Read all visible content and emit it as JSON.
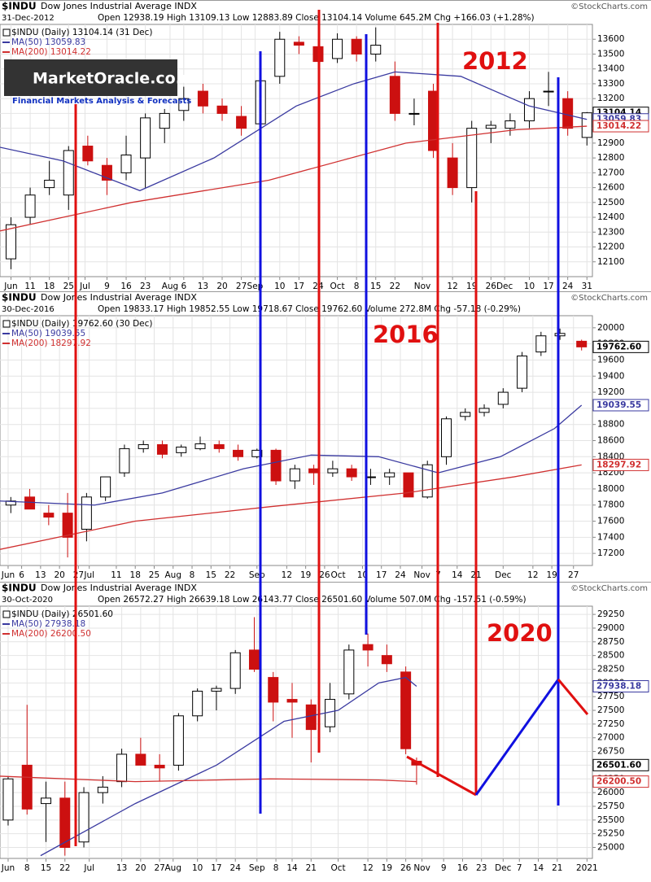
{
  "watermark": {
    "title": "MarketOracle.co.uk",
    "subtitle": "Financial Markets Analysis & Forecasts"
  },
  "chart_data": [
    {
      "type": "candlestick",
      "symbol": "$INDU",
      "title": "Dow Jones Industrial Average INDX",
      "source": "©StockCharts.com",
      "date": "31-Dec-2012",
      "ohlc": "Open 12938.19 High 13109.13 Low 12883.89 Close 13104.14 Volume 645.2M Chg +166.03 (+1.28%)",
      "price_legend": "$INDU (Daily) 13104.14 (31 Dec)",
      "annotation": "2012",
      "grid": true,
      "xlim": [
        152,
        368
      ],
      "ylim": [
        12000,
        13700
      ],
      "xticks": [
        {
          "value": 156,
          "label": "Jun"
        },
        {
          "value": 163,
          "label": "11"
        },
        {
          "value": 170,
          "label": "18"
        },
        {
          "value": 177,
          "label": "25"
        },
        {
          "value": 183,
          "label": "Jul"
        },
        {
          "value": 191,
          "label": "9"
        },
        {
          "value": 198,
          "label": "16"
        },
        {
          "value": 205,
          "label": "23"
        },
        {
          "value": 214,
          "label": "Aug"
        },
        {
          "value": 219,
          "label": "6"
        },
        {
          "value": 226,
          "label": "13"
        },
        {
          "value": 233,
          "label": "20"
        },
        {
          "value": 240,
          "label": "27"
        },
        {
          "value": 245,
          "label": "Sep"
        },
        {
          "value": 254,
          "label": "10"
        },
        {
          "value": 261,
          "label": "17"
        },
        {
          "value": 268,
          "label": "24"
        },
        {
          "value": 275,
          "label": "Oct"
        },
        {
          "value": 282,
          "label": "8"
        },
        {
          "value": 289,
          "label": "15"
        },
        {
          "value": 296,
          "label": "22"
        },
        {
          "value": 306,
          "label": "Nov"
        },
        {
          "value": 317,
          "label": "12"
        },
        {
          "value": 324,
          "label": "19"
        },
        {
          "value": 331,
          "label": "26"
        },
        {
          "value": 336,
          "label": "Dec"
        },
        {
          "value": 345,
          "label": "10"
        },
        {
          "value": 352,
          "label": "17"
        },
        {
          "value": 359,
          "label": "24"
        },
        {
          "value": 366,
          "label": "31"
        }
      ],
      "yticks": [
        12100,
        12200,
        12300,
        12400,
        12500,
        12600,
        12700,
        12800,
        12900,
        13000,
        13100,
        13200,
        13300,
        13400,
        13500,
        13600
      ],
      "candles": {
        "x": [
          156,
          163,
          170,
          177,
          184,
          191,
          198,
          205,
          212,
          219,
          226,
          233,
          240,
          247,
          254,
          261,
          268,
          275,
          282,
          289,
          296,
          303,
          310,
          317,
          324,
          331,
          338,
          345,
          352,
          359,
          366
        ],
        "open": [
          12120,
          12400,
          12600,
          12550,
          12880,
          12750,
          12700,
          12800,
          13000,
          13120,
          13250,
          13150,
          13080,
          13030,
          13350,
          13580,
          13550,
          13470,
          13600,
          13500,
          13350,
          13100,
          13250,
          12800,
          12600,
          13000,
          13000,
          13050,
          13250,
          13200,
          12938.19
        ],
        "high": [
          12400,
          12600,
          12780,
          12880,
          12950,
          12800,
          12950,
          13100,
          13130,
          13280,
          13300,
          13200,
          13150,
          13350,
          13650,
          13620,
          13600,
          13640,
          13620,
          13680,
          13450,
          13200,
          13300,
          12900,
          13050,
          13050,
          13100,
          13250,
          13380,
          13250,
          13109.13
        ],
        "low": [
          12050,
          12350,
          12550,
          12450,
          12750,
          12550,
          12650,
          12600,
          12900,
          13050,
          13100,
          13050,
          12950,
          13000,
          13300,
          13500,
          13400,
          13440,
          13450,
          13450,
          13050,
          13020,
          12800,
          12550,
          12500,
          12900,
          12950,
          13000,
          13150,
          12950,
          12883.89
        ],
        "close": [
          12350,
          12550,
          12650,
          12850,
          12780,
          12650,
          12820,
          13070,
          13100,
          13200,
          13150,
          13100,
          13000,
          13320,
          13600,
          13560,
          13450,
          13600,
          13500,
          13560,
          13100,
          13100,
          12850,
          12600,
          13000,
          13020,
          13050,
          13200,
          13250,
          13000,
          13104.14
        ]
      },
      "series": [
        {
          "name": "MA(50) 13059.83",
          "color": "#3a3aa0",
          "x": [
            150,
            175,
            203,
            230,
            260,
            281,
            296,
            320,
            345,
            366
          ],
          "values": [
            12880,
            12780,
            12580,
            12800,
            13150,
            13300,
            13380,
            13350,
            13150,
            13059.83
          ]
        },
        {
          "name": "MA(200) 13014.22",
          "color": "#d03030",
          "x": [
            150,
            200,
            250,
            300,
            340,
            366
          ],
          "values": [
            12300,
            12500,
            12650,
            12900,
            12990,
            13014.22
          ]
        }
      ],
      "markers": [
        {
          "value": 13104.14,
          "label": "13104.14",
          "color": "#000000"
        },
        {
          "value": 13059.83,
          "label": "13059.83",
          "color": "#3a3aa0"
        },
        {
          "value": 13014.22,
          "label": "13014.22",
          "color": "#d03030"
        }
      ]
    },
    {
      "type": "candlestick",
      "symbol": "$INDU",
      "title": "Dow Jones Industrial Average INDX",
      "source": "©StockCharts.com",
      "date": "30-Dec-2016",
      "ohlc": "Open 19833.17 High 19852.55 Low 19718.67 Close 19762.60 Volume 272.8M Chg -57.18 (-0.29%)",
      "price_legend": "$INDU (Daily) 19762.60 (30 Dec)",
      "annotation": "2016",
      "grid": true,
      "xlim": [
        150,
        369
      ],
      "ylim": [
        17050,
        20150
      ],
      "xticks": [
        {
          "value": 153,
          "label": "Jun"
        },
        {
          "value": 158,
          "label": "6"
        },
        {
          "value": 165,
          "label": "13"
        },
        {
          "value": 172,
          "label": "20"
        },
        {
          "value": 179,
          "label": "27"
        },
        {
          "value": 183,
          "label": "Jul"
        },
        {
          "value": 193,
          "label": "11"
        },
        {
          "value": 200,
          "label": "18"
        },
        {
          "value": 207,
          "label": "25"
        },
        {
          "value": 214,
          "label": "Aug"
        },
        {
          "value": 221,
          "label": "8"
        },
        {
          "value": 228,
          "label": "15"
        },
        {
          "value": 235,
          "label": "22"
        },
        {
          "value": 245,
          "label": "Sep"
        },
        {
          "value": 256,
          "label": "12"
        },
        {
          "value": 263,
          "label": "19"
        },
        {
          "value": 270,
          "label": "26"
        },
        {
          "value": 275,
          "label": "Oct"
        },
        {
          "value": 284,
          "label": "10"
        },
        {
          "value": 291,
          "label": "17"
        },
        {
          "value": 298,
          "label": "24"
        },
        {
          "value": 306,
          "label": "Nov"
        },
        {
          "value": 312,
          "label": "7"
        },
        {
          "value": 319,
          "label": "14"
        },
        {
          "value": 326,
          "label": "21"
        },
        {
          "value": 336,
          "label": "Dec"
        },
        {
          "value": 347,
          "label": "12"
        },
        {
          "value": 354,
          "label": "19"
        },
        {
          "value": 362,
          "label": "27"
        }
      ],
      "yticks": [
        17200,
        17400,
        17600,
        17800,
        18000,
        18200,
        18400,
        18600,
        18800,
        19000,
        19200,
        19400,
        19600,
        19800,
        20000
      ],
      "candles": {
        "x": [
          154,
          161,
          168,
          175,
          182,
          189,
          196,
          203,
          210,
          217,
          224,
          231,
          238,
          245,
          252,
          259,
          266,
          273,
          280,
          287,
          294,
          301,
          308,
          315,
          322,
          329,
          336,
          343,
          350,
          357,
          365
        ],
        "open": [
          17800,
          17900,
          17700,
          17700,
          17500,
          17900,
          18200,
          18500,
          18550,
          18450,
          18500,
          18550,
          18480,
          18400,
          18480,
          18100,
          18250,
          18200,
          18250,
          18150,
          18150,
          18200,
          17900,
          18400,
          18900,
          18950,
          19050,
          19250,
          19700,
          19900,
          19833.17
        ],
        "high": [
          17900,
          18000,
          17800,
          17950,
          17950,
          18150,
          18550,
          18600,
          18600,
          18550,
          18650,
          18600,
          18550,
          18500,
          18500,
          18300,
          18300,
          18350,
          18300,
          18250,
          18250,
          18200,
          18350,
          18900,
          19000,
          19050,
          19250,
          19700,
          19950,
          19990,
          19852.55
        ],
        "low": [
          17700,
          17750,
          17550,
          17150,
          17350,
          17850,
          18150,
          18450,
          18380,
          18400,
          18480,
          18450,
          18350,
          18380,
          18050,
          18000,
          18050,
          18150,
          18100,
          18050,
          18050,
          17900,
          17880,
          18300,
          18850,
          18900,
          19000,
          19200,
          19650,
          19850,
          19718.67
        ],
        "close": [
          17850,
          17750,
          17650,
          17400,
          17900,
          18150,
          18500,
          18550,
          18430,
          18520,
          18560,
          18500,
          18400,
          18480,
          18100,
          18250,
          18200,
          18250,
          18150,
          18150,
          18200,
          17900,
          18300,
          18870,
          18950,
          19000,
          19200,
          19650,
          19900,
          19930,
          19762.6
        ]
      },
      "series": [
        {
          "name": "MA(50) 19039.55",
          "color": "#3a3aa0",
          "x": [
            150,
            185,
            210,
            240,
            265,
            290,
            312,
            335,
            355,
            365
          ],
          "values": [
            17850,
            17800,
            17950,
            18250,
            18420,
            18400,
            18200,
            18400,
            18750,
            19039.55
          ]
        },
        {
          "name": "MA(200) 18297.92",
          "color": "#d03030",
          "x": [
            150,
            200,
            250,
            300,
            340,
            365
          ],
          "values": [
            17250,
            17600,
            17780,
            17950,
            18150,
            18297.92
          ]
        }
      ],
      "markers": [
        {
          "value": 19762.6,
          "label": "19762.60",
          "color": "#000000"
        },
        {
          "value": 19039.55,
          "label": "19039.55",
          "color": "#3a3aa0"
        },
        {
          "value": 18297.92,
          "label": "18297.92",
          "color": "#d03030"
        }
      ]
    },
    {
      "type": "candlestick",
      "symbol": "$INDU",
      "title": "Dow Jones Industrial Average INDX",
      "source": "©StockCharts.com",
      "date": "30-Oct-2020",
      "ohlc": "Open 26572.27 High 26639.18 Low 26143.77 Close 26501.60 Volume 507.0M Chg -157.51 (-0.59%)",
      "price_legend": "$INDU (Daily) 26501.60",
      "annotation": "2020",
      "grid": true,
      "xlim": [
        150,
        369
      ],
      "ylim": [
        24800,
        29400
      ],
      "xticks": [
        {
          "value": 153,
          "label": "Jun"
        },
        {
          "value": 160,
          "label": "8"
        },
        {
          "value": 167,
          "label": "15"
        },
        {
          "value": 174,
          "label": "22"
        },
        {
          "value": 183,
          "label": "Jul"
        },
        {
          "value": 195,
          "label": "13"
        },
        {
          "value": 202,
          "label": "20"
        },
        {
          "value": 209,
          "label": "27"
        },
        {
          "value": 214,
          "label": "Aug"
        },
        {
          "value": 223,
          "label": "10"
        },
        {
          "value": 230,
          "label": "17"
        },
        {
          "value": 237,
          "label": "24"
        },
        {
          "value": 245,
          "label": "Sep"
        },
        {
          "value": 252,
          "label": "8"
        },
        {
          "value": 258,
          "label": "14"
        },
        {
          "value": 265,
          "label": "21"
        },
        {
          "value": 275,
          "label": "Oct"
        },
        {
          "value": 286,
          "label": "12"
        },
        {
          "value": 293,
          "label": "19"
        },
        {
          "value": 300,
          "label": "26"
        },
        {
          "value": 306,
          "label": "Nov"
        },
        {
          "value": 314,
          "label": "9"
        },
        {
          "value": 321,
          "label": "16"
        },
        {
          "value": 328,
          "label": "23"
        },
        {
          "value": 336,
          "label": "Dec"
        },
        {
          "value": 342,
          "label": "7"
        },
        {
          "value": 349,
          "label": "14"
        },
        {
          "value": 356,
          "label": "21"
        },
        {
          "value": 367,
          "label": "2021"
        }
      ],
      "yticks": [
        25000,
        25250,
        25500,
        25750,
        26000,
        26250,
        26500,
        26750,
        27000,
        27250,
        27500,
        27750,
        28000,
        28250,
        28500,
        28750,
        29000,
        29250
      ],
      "candles": {
        "x": [
          153,
          160,
          167,
          174,
          181,
          188,
          195,
          202,
          209,
          216,
          223,
          230,
          237,
          244,
          251,
          258,
          265,
          272,
          279,
          286,
          293,
          300,
          304
        ],
        "open": [
          25500,
          26500,
          25800,
          25900,
          25100,
          26000,
          26200,
          26700,
          26500,
          26500,
          27400,
          27850,
          27900,
          28600,
          28100,
          27700,
          27600,
          27200,
          27800,
          28700,
          28500,
          28200,
          26572.27
        ],
        "high": [
          26300,
          27600,
          26200,
          26200,
          26100,
          26300,
          26800,
          27000,
          26700,
          27450,
          27900,
          27950,
          28600,
          29200,
          28200,
          28000,
          27700,
          28000,
          28700,
          28900,
          28700,
          28300,
          26639.18
        ],
        "low": [
          25400,
          25600,
          25100,
          24850,
          25000,
          25800,
          26100,
          26500,
          26200,
          26400,
          27300,
          27500,
          27800,
          28200,
          27300,
          27000,
          26550,
          27100,
          27700,
          28300,
          28200,
          26700,
          26143.77
        ],
        "close": [
          26250,
          25700,
          25900,
          25000,
          26000,
          26100,
          26700,
          26500,
          26450,
          27400,
          27850,
          27900,
          28550,
          28250,
          27650,
          27650,
          27150,
          27700,
          28600,
          28600,
          28350,
          26800,
          26501.6
        ]
      },
      "series": [
        {
          "name": "MA(50) 27938.18",
          "color": "#3a3aa0",
          "x": [
            165,
            200,
            230,
            255,
            275,
            290,
            300,
            304
          ],
          "values": [
            24850,
            25800,
            26500,
            27300,
            27500,
            28000,
            28100,
            27938.18
          ]
        },
        {
          "name": "MA(200) 26200.50",
          "color": "#d03030",
          "x": [
            150,
            200,
            250,
            290,
            304
          ],
          "values": [
            26300,
            26200,
            26250,
            26230,
            26200.5
          ]
        }
      ],
      "markers": [
        {
          "value": 27938.18,
          "label": "27938.18",
          "color": "#3a3aa0"
        },
        {
          "value": 26501.6,
          "label": "26501.60",
          "color": "#000000"
        },
        {
          "value": 26200.5,
          "label": "26200.50",
          "color": "#d03030"
        }
      ]
    }
  ]
}
